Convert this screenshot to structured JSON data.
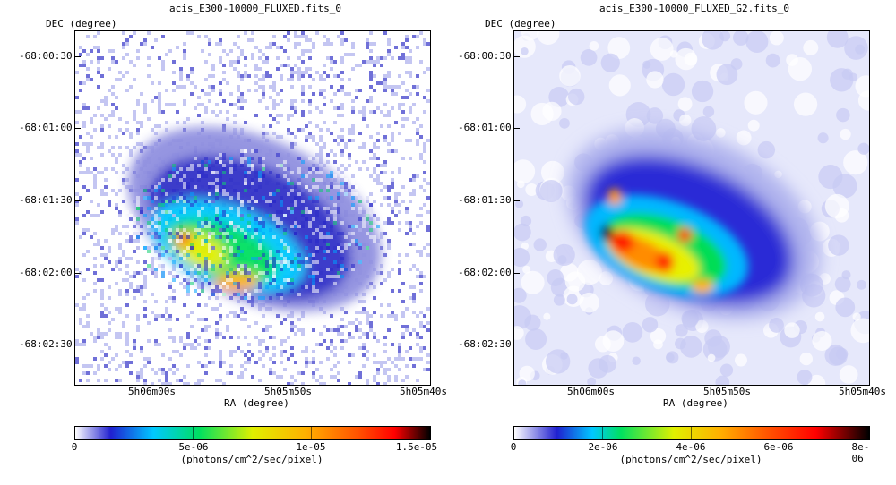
{
  "panels": [
    {
      "title": "acis_E300-10000_FLUXED.fits_0",
      "ylabel": "DEC (degree)",
      "xlabel": "RA (degree)",
      "yticks": [
        "-68:00:30",
        "-68:01:00",
        "-68:01:30",
        "-68:02:00",
        "-68:02:30"
      ],
      "xticks": [
        "5h06m00s",
        "5h05m50s",
        "5h05m40s"
      ],
      "colorbar": {
        "labels": [
          "0",
          "5e-06",
          "1e-05",
          "1.5e-05"
        ],
        "unit": "(photons/cm^2/sec/pixel)"
      }
    },
    {
      "title": "acis_E300-10000_FLUXED_G2.fits_0",
      "ylabel": "DEC (degree)",
      "xlabel": "RA (degree)",
      "yticks": [
        "-68:00:30",
        "-68:01:00",
        "-68:01:30",
        "-68:02:00",
        "-68:02:30"
      ],
      "xticks": [
        "5h06m00s",
        "5h05m50s",
        "5h05m40s"
      ],
      "colorbar": {
        "labels": [
          "0",
          "2e-06",
          "4e-06",
          "6e-06",
          "8e-06"
        ],
        "unit": "(photons/cm^2/sec/pixel)"
      }
    }
  ],
  "colormap": [
    "#ffffff",
    "#2020d0",
    "#00c8ff",
    "#00e060",
    "#e0f000",
    "#ff9000",
    "#ff0000",
    "#000000"
  ]
}
